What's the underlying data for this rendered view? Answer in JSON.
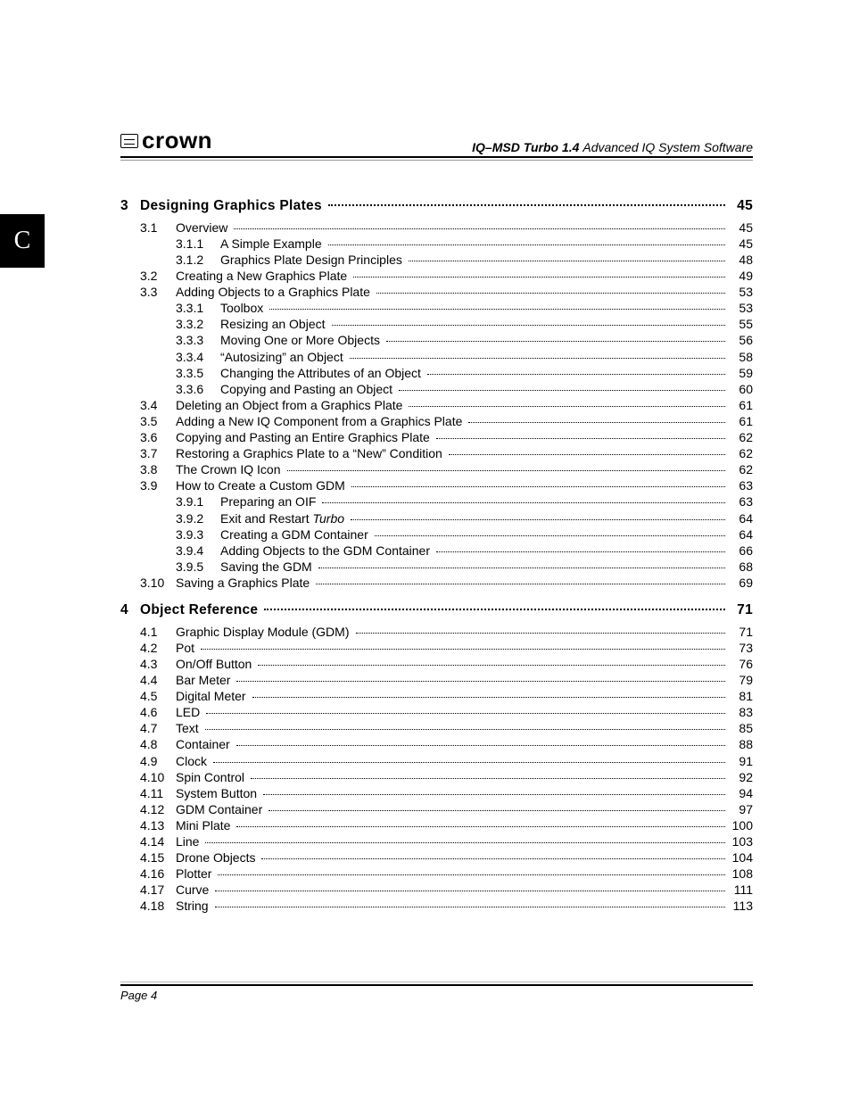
{
  "tab_letter": "C",
  "header": {
    "logo_text": "crown",
    "product": "IQ–MSD Turbo 1.4",
    "tagline": "Advanced IQ System Software"
  },
  "footer": {
    "page_label": "Page 4"
  },
  "chapters": [
    {
      "num": "3",
      "title": "Designing Graphics Plates",
      "page": "45",
      "sections": [
        {
          "num": "3.1",
          "title": "Overview",
          "page": "45",
          "subs": [
            {
              "num": "3.1.1",
              "title": "A Simple Example",
              "page": "45"
            },
            {
              "num": "3.1.2",
              "title": "Graphics Plate Design Principles",
              "page": "48"
            }
          ]
        },
        {
          "num": "3.2",
          "title": "Creating a New Graphics Plate",
          "page": "49"
        },
        {
          "num": "3.3",
          "title": "Adding Objects to a Graphics Plate",
          "page": "53",
          "subs": [
            {
              "num": "3.3.1",
              "title": "Toolbox",
              "page": "53"
            },
            {
              "num": "3.3.2",
              "title": "Resizing an Object",
              "page": "55"
            },
            {
              "num": "3.3.3",
              "title": "Moving One or More Objects",
              "page": "56"
            },
            {
              "num": "3.3.4",
              "title": "“Autosizing” an Object",
              "page": "58"
            },
            {
              "num": "3.3.5",
              "title": "Changing the Attributes of an Object",
              "page": "59"
            },
            {
              "num": "3.3.6",
              "title": "Copying and Pasting an Object",
              "page": "60"
            }
          ]
        },
        {
          "num": "3.4",
          "title": "Deleting an Object from a Graphics Plate",
          "page": "61"
        },
        {
          "num": "3.5",
          "title": "Adding a New IQ Component from a Graphics Plate",
          "page": "61"
        },
        {
          "num": "3.6",
          "title": "Copying and Pasting an Entire Graphics Plate",
          "page": "62"
        },
        {
          "num": "3.7",
          "title": "Restoring a Graphics Plate to a “New” Condition",
          "page": "62"
        },
        {
          "num": "3.8",
          "title": "The Crown IQ Icon",
          "page": "62"
        },
        {
          "num": "3.9",
          "title": "How to Create a Custom GDM",
          "page": "63",
          "subs": [
            {
              "num": "3.9.1",
              "title": "Preparing an OIF",
              "page": "63"
            },
            {
              "num": "3.9.2",
              "title_html": "Exit and Restart <span class=\"ital\">Turbo</span>",
              "page": "64"
            },
            {
              "num": "3.9.3",
              "title": "Creating a GDM Container",
              "page": "64"
            },
            {
              "num": "3.9.4",
              "title": "Adding Objects to the GDM Container",
              "page": "66"
            },
            {
              "num": "3.9.5",
              "title": "Saving the GDM",
              "page": "68"
            }
          ]
        },
        {
          "num": "3.10",
          "title": "Saving a Graphics Plate",
          "page": "69"
        }
      ]
    },
    {
      "num": "4",
      "title": "Object Reference",
      "page": "71",
      "sections": [
        {
          "num": "4.1",
          "title": "Graphic Display Module (GDM)",
          "page": "71"
        },
        {
          "num": "4.2",
          "title": "Pot",
          "page": "73"
        },
        {
          "num": "4.3",
          "title": "On/Off Button",
          "page": "76"
        },
        {
          "num": "4.4",
          "title": "Bar Meter",
          "page": "79"
        },
        {
          "num": "4.5",
          "title": "Digital Meter",
          "page": "81"
        },
        {
          "num": "4.6",
          "title": "LED",
          "page": "83"
        },
        {
          "num": "4.7",
          "title": "Text",
          "page": "85"
        },
        {
          "num": "4.8",
          "title": "Container",
          "page": "88"
        },
        {
          "num": "4.9",
          "title": "Clock",
          "page": "91"
        },
        {
          "num": "4.10",
          "title": "Spin Control",
          "page": "92"
        },
        {
          "num": "4.11",
          "title": "System Button",
          "page": "94"
        },
        {
          "num": "4.12",
          "title": "GDM Container",
          "page": "97"
        },
        {
          "num": "4.13",
          "title": "Mini Plate",
          "page": "100"
        },
        {
          "num": "4.14",
          "title": "Line",
          "page": "103"
        },
        {
          "num": "4.15",
          "title": "Drone Objects",
          "page": "104"
        },
        {
          "num": "4.16",
          "title": "Plotter",
          "page": "108"
        },
        {
          "num": "4.17",
          "title": "Curve",
          "page": "111"
        },
        {
          "num": "4.18",
          "title": "String",
          "page": "113"
        }
      ]
    }
  ]
}
